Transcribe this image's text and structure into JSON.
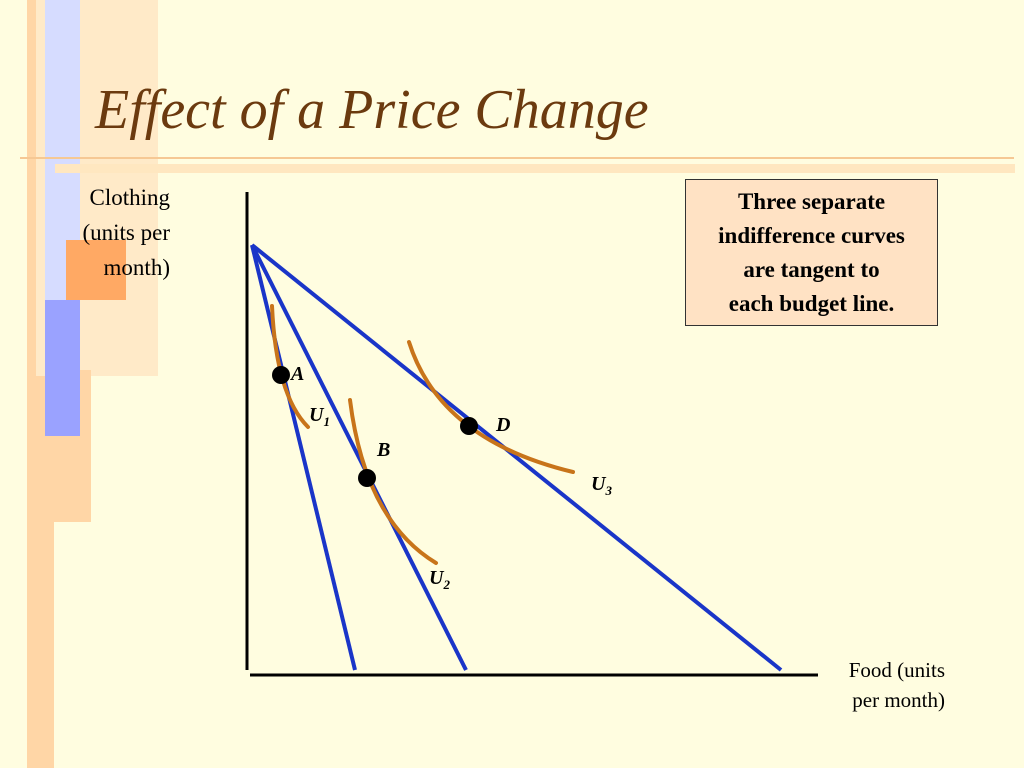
{
  "title": "Effect of a Price Change",
  "axes": {
    "y_label_lines": [
      "Clothing",
      "(units per",
      "month)"
    ],
    "x_label_lines": [
      "Food (units",
      "per month)"
    ]
  },
  "callout_lines": [
    "Three separate",
    "indifference curves",
    "are tangent to",
    "each budget line."
  ],
  "points": {
    "a": "A",
    "b": "B",
    "d": "D"
  },
  "curves": {
    "u1": {
      "letter": "U",
      "index": "1"
    },
    "u2": {
      "letter": "U",
      "index": "2"
    },
    "u3": {
      "letter": "U",
      "index": "3"
    }
  },
  "colors": {
    "background": "#fffde0",
    "title": "#6b3a0f",
    "budget_line": "#1a35c8",
    "indifference_curve": "#c8741a",
    "callout_bg": "#ffe2c4"
  }
}
